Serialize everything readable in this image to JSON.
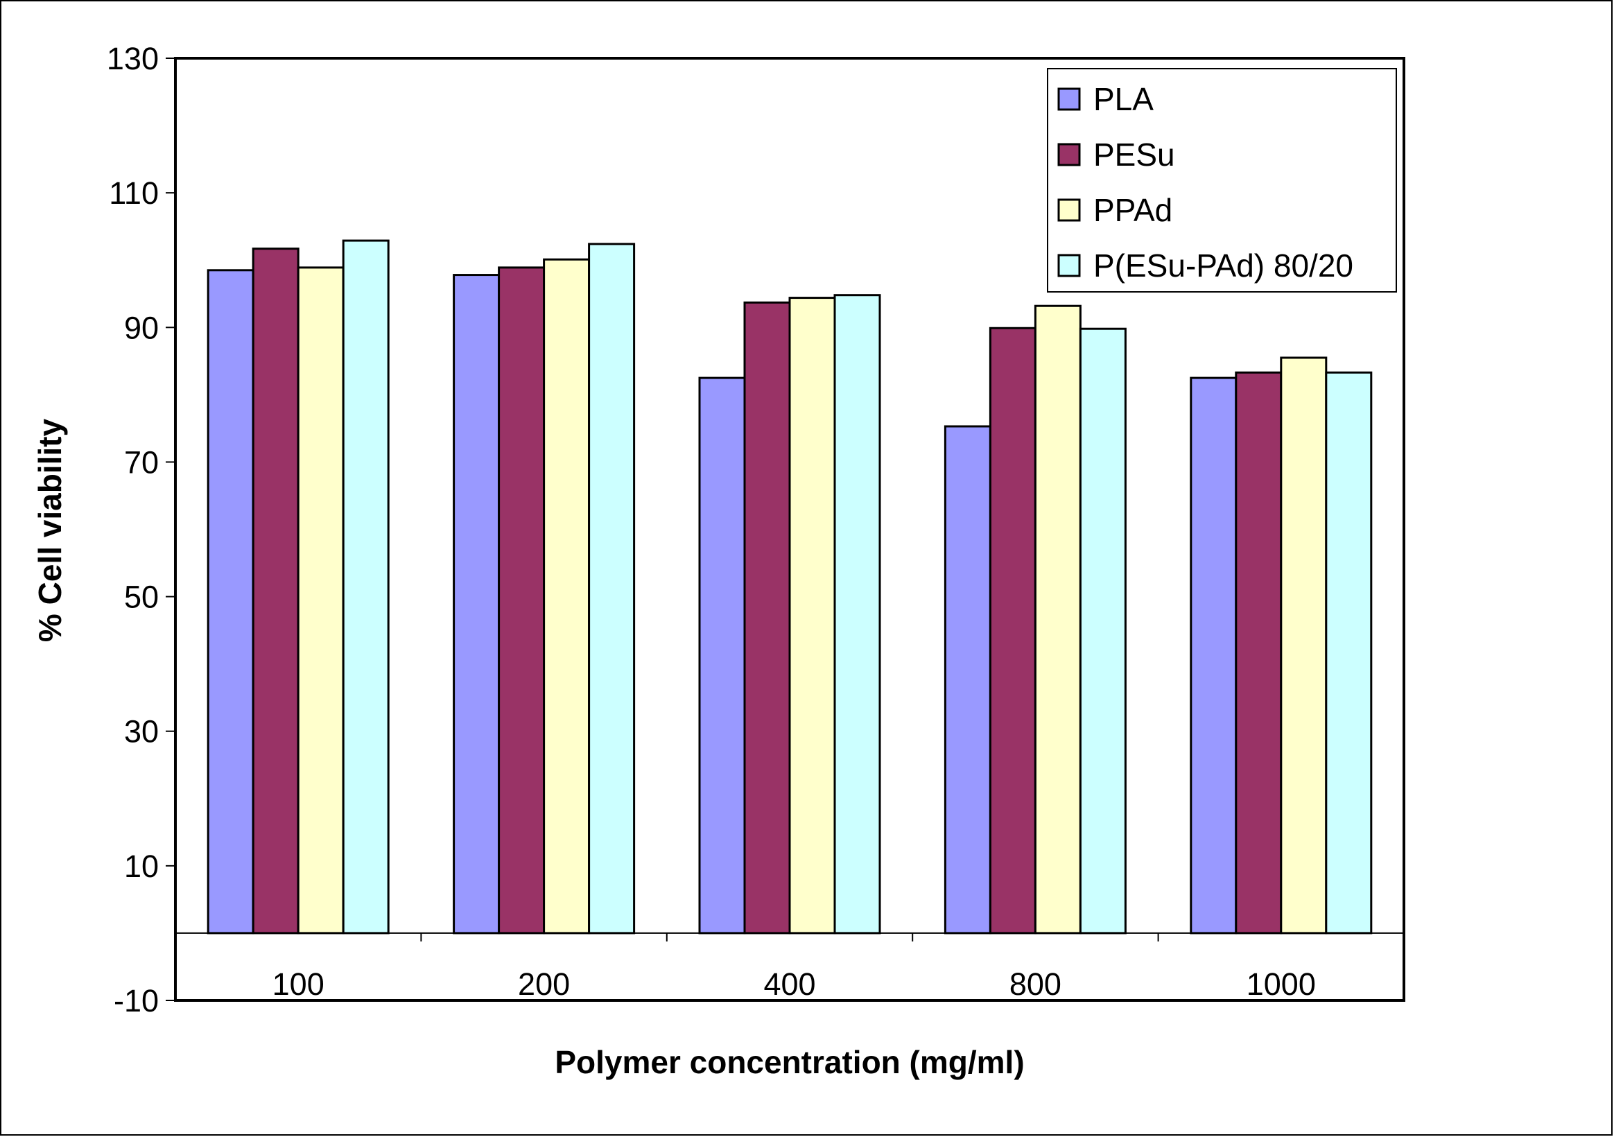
{
  "chart_data": {
    "type": "bar",
    "title": "",
    "xlabel": "Polymer concentration (mg/ml)",
    "ylabel": "% Cell viability",
    "categories": [
      "100",
      "200",
      "400",
      "800",
      "1000"
    ],
    "ylim": [
      -10,
      130
    ],
    "yticks": [
      "130",
      "110",
      "90",
      "70",
      "50",
      "30",
      "10",
      "-10"
    ],
    "grid": false,
    "legend_position": "top-right",
    "series": [
      {
        "name": "PLA",
        "color": "#9999ff",
        "values": [
          98.5,
          97.8,
          82.5,
          75.3,
          82.5
        ]
      },
      {
        "name": "PESu",
        "color": "#993366",
        "values": [
          101.7,
          98.9,
          93.7,
          89.9,
          83.3
        ]
      },
      {
        "name": "PPAd",
        "color": "#ffffcc",
        "values": [
          98.9,
          100.1,
          94.4,
          93.2,
          85.5
        ]
      },
      {
        "name": "P(ESu-PAd) 80/20",
        "color": "#ccffff",
        "values": [
          102.9,
          102.4,
          94.8,
          89.8,
          83.3
        ]
      }
    ]
  }
}
